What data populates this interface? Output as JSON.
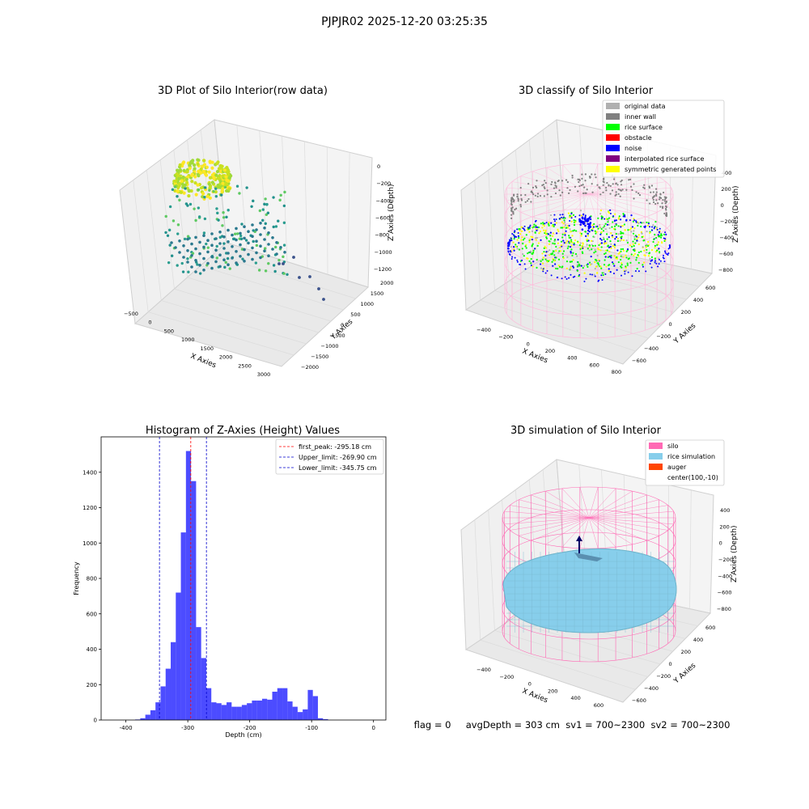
{
  "figure_title": "PJPJR02 2025-12-20 03:25:35",
  "status_line": "flag = 0     avgDepth = 303 cm  sv1 = 700~2300  sv2 = 700~2300",
  "colors": {
    "hist_bar": "#0000ff",
    "peak_line": "#ff0000",
    "limit_line": "#0000cc",
    "pane": "#f2f2f2",
    "grid": "#d8d8d8"
  },
  "chart_data": [
    {
      "type": "scatter3d",
      "title": "3D Plot of Silo Interior(row data)",
      "xlabel": "X Axies",
      "ylabel": "Y Axies",
      "zlabel": "Z Axies (Depth)",
      "x_ticks": [
        "−500",
        "0",
        "500",
        "1000",
        "1500",
        "2000",
        "2500",
        "3000"
      ],
      "y_ticks": [
        "−2000",
        "−1500",
        "−1000",
        "−500",
        "0",
        "500",
        "1000",
        "1500",
        "2000"
      ],
      "z_ticks": [
        "0",
        "−200",
        "−400",
        "−600",
        "−800",
        "−1000",
        "−1200"
      ],
      "colormap": "viridis",
      "grid": true
    },
    {
      "type": "scatter3d",
      "title": "3D classify of Silo Interior",
      "xlabel": "X Axies",
      "ylabel": "Y Axies",
      "zlabel": "Z Axies (Depth)",
      "x_ticks": [
        "−400",
        "−200",
        "0",
        "200",
        "400",
        "600",
        "800"
      ],
      "y_ticks": [
        "−600",
        "−400",
        "−200",
        "0",
        "200",
        "400",
        "600"
      ],
      "z_ticks": [
        "400",
        "200",
        "0",
        "−200",
        "−400",
        "−600",
        "−800"
      ],
      "legend_position": "top-right",
      "legend": [
        {
          "label": "original data",
          "color": "#b0b0b0"
        },
        {
          "label": "inner wall",
          "color": "#808080"
        },
        {
          "label": "rice surface",
          "color": "#00ff00"
        },
        {
          "label": "obstacle",
          "color": "#ff0000"
        },
        {
          "label": "noise",
          "color": "#0000ff"
        },
        {
          "label": "interpolated rice surface",
          "color": "#800080"
        },
        {
          "label": "symmetric generated points",
          "color": "#ffff00"
        }
      ],
      "grid": true
    },
    {
      "type": "bar",
      "title": "Histogram of Z-Axies (Height) Values",
      "xlabel": "Depth (cm)",
      "ylabel": "Frequency",
      "xlim": [
        -440,
        20
      ],
      "ylim": [
        0,
        1600
      ],
      "x_ticks": [
        -400,
        -300,
        -200,
        -100,
        0
      ],
      "y_ticks": [
        0,
        200,
        400,
        600,
        800,
        1000,
        1200,
        1400
      ],
      "bin_width": 8.2,
      "bin_start": -385,
      "values": [
        3,
        10,
        30,
        55,
        100,
        190,
        290,
        440,
        720,
        1060,
        1520,
        1350,
        525,
        350,
        180,
        100,
        95,
        85,
        100,
        75,
        75,
        85,
        95,
        110,
        110,
        120,
        115,
        160,
        180,
        180,
        105,
        75,
        45,
        60,
        170,
        135,
        10,
        5
      ],
      "reference_lines": [
        {
          "label": "first_peak: -295.18 cm",
          "x": -295.18,
          "color": "#ff0000"
        },
        {
          "label": "Upper_limit: -269.90 cm",
          "x": -269.9,
          "color": "#0000cc"
        },
        {
          "label": "Lower_limit: -345.75 cm",
          "x": -345.75,
          "color": "#0000cc"
        }
      ],
      "legend_position": "top-right",
      "grid": false
    },
    {
      "type": "surface3d",
      "title": "3D simulation of Silo Interior",
      "xlabel": "X Axies",
      "ylabel": "Y Axies",
      "zlabel": "Z Axies (Depth)",
      "x_ticks": [
        "−400",
        "−200",
        "0",
        "200",
        "400",
        "600"
      ],
      "y_ticks": [
        "−600",
        "−400",
        "−200",
        "0",
        "200",
        "400",
        "600"
      ],
      "z_ticks": [
        "400",
        "200",
        "0",
        "−200",
        "−400",
        "−600",
        "−800"
      ],
      "legend_position": "top-right",
      "legend": [
        {
          "label": "silo",
          "color": "#ff69b4"
        },
        {
          "label": "rice simulation",
          "color": "#87ceeb"
        },
        {
          "label": "auger",
          "color": "#ff4500"
        },
        {
          "label": "center(100,-10)",
          "color": ""
        }
      ],
      "grid": true
    }
  ]
}
